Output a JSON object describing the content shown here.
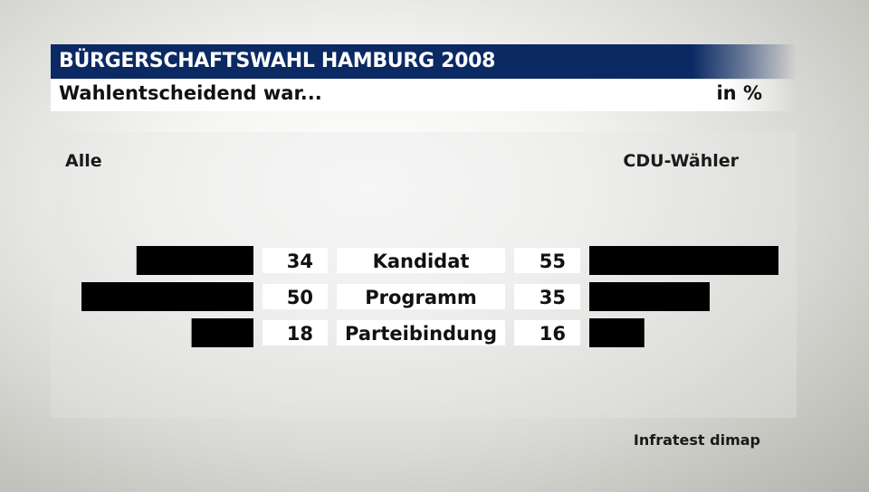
{
  "header": {
    "title": "BÜRGERSCHAFTSWAHL HAMBURG 2008",
    "subtitle": "Wahlentscheidend war...",
    "unit": "in %"
  },
  "columns": {
    "left": "Alle",
    "right": "CDU-Wähler"
  },
  "source": "Infratest dimap",
  "colors": {
    "title_bg": "#0b2a64",
    "bar": "#000000",
    "label_bg": "#ffffff"
  },
  "chart_data": {
    "type": "bar",
    "categories": [
      "Kandidat",
      "Programm",
      "Parteibindung"
    ],
    "series": [
      {
        "name": "Alle",
        "values": [
          34,
          50,
          18
        ]
      },
      {
        "name": "CDU-Wähler",
        "values": [
          55,
          35,
          16
        ]
      }
    ]
  }
}
